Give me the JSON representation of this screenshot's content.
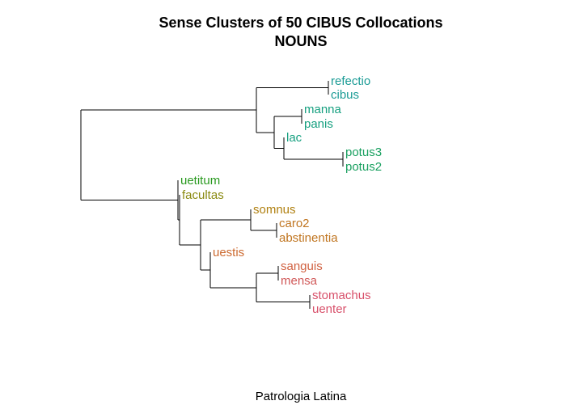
{
  "figure": {
    "title_line1": "Sense Clusters of 50 CIBUS Collocations",
    "title_line2": "NOUNS",
    "caption": "Patrologia Latina"
  },
  "leaves": [
    {
      "label": "refectio",
      "color": "#1a9b95"
    },
    {
      "label": "cibus",
      "color": "#1a9b95"
    },
    {
      "label": "manna",
      "color": "#16a080"
    },
    {
      "label": "panis",
      "color": "#16a080"
    },
    {
      "label": "lac",
      "color": "#16a080"
    },
    {
      "label": "potus3",
      "color": "#1aa060"
    },
    {
      "label": "potus2",
      "color": "#1aa060"
    },
    {
      "label": "uetitum",
      "color": "#2a9a20"
    },
    {
      "label": "facultas",
      "color": "#8a8a10"
    },
    {
      "label": "somnus",
      "color": "#b08010"
    },
    {
      "label": "caro2",
      "color": "#c07520"
    },
    {
      "label": "abstinentia",
      "color": "#c07520"
    },
    {
      "label": "uestis",
      "color": "#cc6a30"
    },
    {
      "label": "sanguis",
      "color": "#d06040"
    },
    {
      "label": "mensa",
      "color": "#d05858"
    },
    {
      "label": "stomachus",
      "color": "#d8506a"
    },
    {
      "label": "uenter",
      "color": "#d8506a"
    }
  ]
}
